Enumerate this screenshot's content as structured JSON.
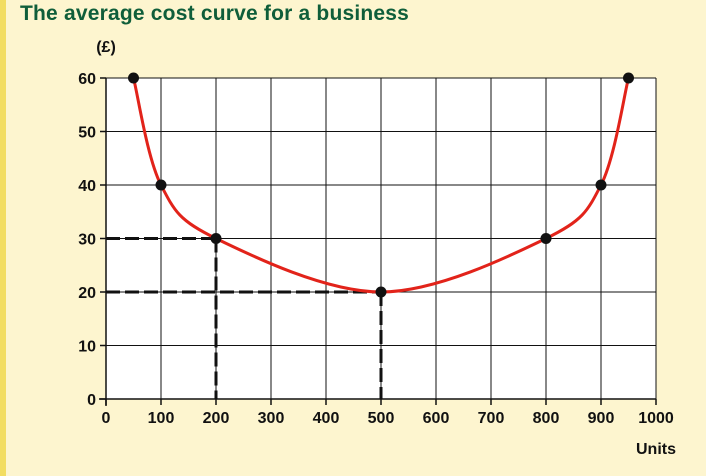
{
  "chart_data": {
    "type": "line",
    "title": "The average cost curve for a business",
    "ylabel": "(£)",
    "xlabel": "Units",
    "xlim": [
      0,
      1000
    ],
    "ylim": [
      0,
      60
    ],
    "x_ticks": [
      0,
      100,
      200,
      300,
      400,
      500,
      600,
      700,
      800,
      900,
      1000
    ],
    "y_ticks": [
      0,
      10,
      20,
      30,
      40,
      50,
      60
    ],
    "grid": true,
    "series": [
      {
        "color": "#e2231a",
        "x": [
          50,
          100,
          200,
          500,
          800,
          900,
          950
        ],
        "y": [
          60,
          40,
          30,
          20,
          30,
          40,
          60
        ]
      }
    ],
    "highlighted_points": [
      {
        "x": 200,
        "y": 30
      },
      {
        "x": 500,
        "y": 20
      }
    ]
  },
  "colors": {
    "background": "#fdf5cf",
    "title": "#0f5e3a",
    "curve": "#e2231a",
    "axes": "#111111"
  }
}
